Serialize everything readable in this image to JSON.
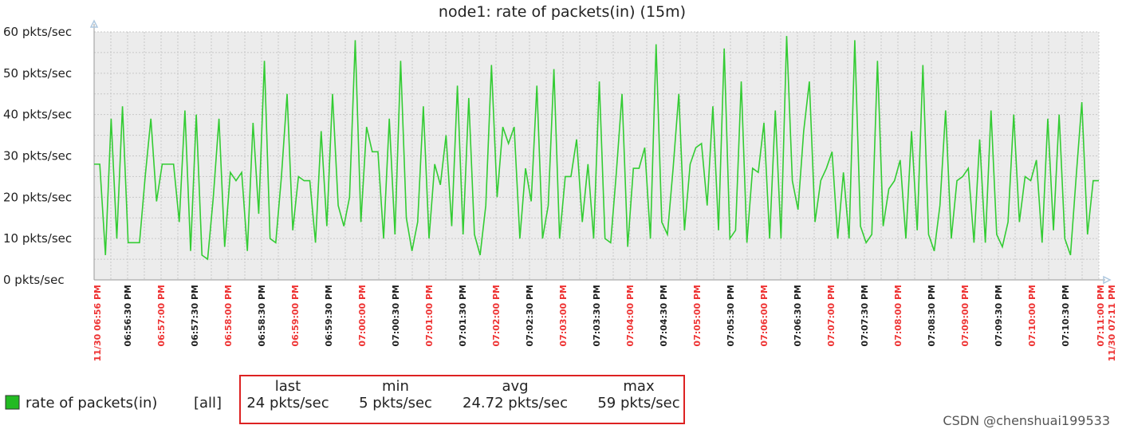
{
  "chart_data": {
    "type": "line",
    "title": "node1: rate of packets(in) (15m)",
    "ylabel": "",
    "xlabel": "",
    "y_unit": "pkts/sec",
    "ylim": [
      0,
      60
    ],
    "yticks": [
      0,
      10,
      20,
      30,
      40,
      50,
      60
    ],
    "ytick_labels": [
      "0 pkts/sec",
      "10 pkts/sec",
      "20 pkts/sec",
      "30 pkts/sec",
      "40 pkts/sec",
      "50 pkts/sec",
      "60 pkts/sec"
    ],
    "grid": true,
    "xlim": [
      "06:56:00 PM",
      "07:11:00 PM"
    ],
    "xticks": [
      {
        "label": "11/30 06:56 PM",
        "second": 0,
        "major": true
      },
      {
        "label": "06:56:30 PM",
        "second": 30,
        "major": false
      },
      {
        "label": "06:57:00 PM",
        "second": 60,
        "major": true
      },
      {
        "label": "06:57:30 PM",
        "second": 90,
        "major": false
      },
      {
        "label": "06:58:00 PM",
        "second": 120,
        "major": true
      },
      {
        "label": "06:58:30 PM",
        "second": 150,
        "major": false
      },
      {
        "label": "06:59:00 PM",
        "second": 180,
        "major": true
      },
      {
        "label": "06:59:30 PM",
        "second": 210,
        "major": false
      },
      {
        "label": "07:00:00 PM",
        "second": 240,
        "major": true
      },
      {
        "label": "07:00:30 PM",
        "second": 270,
        "major": false
      },
      {
        "label": "07:01:00 PM",
        "second": 300,
        "major": true
      },
      {
        "label": "07:01:30 PM",
        "second": 330,
        "major": false
      },
      {
        "label": "07:02:00 PM",
        "second": 360,
        "major": true
      },
      {
        "label": "07:02:30 PM",
        "second": 390,
        "major": false
      },
      {
        "label": "07:03:00 PM",
        "second": 420,
        "major": true
      },
      {
        "label": "07:03:30 PM",
        "second": 450,
        "major": false
      },
      {
        "label": "07:04:00 PM",
        "second": 480,
        "major": true
      },
      {
        "label": "07:04:30 PM",
        "second": 510,
        "major": false
      },
      {
        "label": "07:05:00 PM",
        "second": 540,
        "major": true
      },
      {
        "label": "07:05:30 PM",
        "second": 570,
        "major": false
      },
      {
        "label": "07:06:00 PM",
        "second": 600,
        "major": true
      },
      {
        "label": "07:06:30 PM",
        "second": 630,
        "major": false
      },
      {
        "label": "07:07:00 PM",
        "second": 660,
        "major": true
      },
      {
        "label": "07:07:30 PM",
        "second": 690,
        "major": false
      },
      {
        "label": "07:08:00 PM",
        "second": 720,
        "major": true
      },
      {
        "label": "07:08:30 PM",
        "second": 750,
        "major": false
      },
      {
        "label": "07:09:00 PM",
        "second": 780,
        "major": true
      },
      {
        "label": "07:09:30 PM",
        "second": 810,
        "major": false
      },
      {
        "label": "07:10:00 PM",
        "second": 840,
        "major": true
      },
      {
        "label": "07:10:30 PM",
        "second": 870,
        "major": false
      },
      {
        "label": "07:11:00 PM",
        "second": 900,
        "major": true
      },
      {
        "label": "11/30 07:11 PM",
        "second": 900,
        "major": true
      }
    ],
    "series": [
      {
        "name": "rate of packets(in)",
        "color": "#33cc33",
        "values": [
          28,
          28,
          6,
          39,
          10,
          42,
          9,
          9,
          9,
          25,
          39,
          19,
          28,
          28,
          28,
          14,
          41,
          7,
          40,
          6,
          5,
          20,
          39,
          8,
          26,
          24,
          26,
          7,
          38,
          16,
          53,
          10,
          9,
          25,
          45,
          12,
          25,
          24,
          24,
          9,
          36,
          13,
          45,
          18,
          13,
          20,
          58,
          14,
          37,
          31,
          31,
          10,
          39,
          11,
          53,
          15,
          7,
          14,
          42,
          10,
          28,
          23,
          35,
          13,
          47,
          11,
          44,
          11,
          6,
          18,
          52,
          20,
          37,
          33,
          37,
          10,
          27,
          19,
          47,
          10,
          18,
          51,
          10,
          25,
          25,
          34,
          14,
          28,
          10,
          48,
          10,
          9,
          26,
          45,
          8,
          27,
          27,
          32,
          10,
          57,
          14,
          11,
          27,
          45,
          12,
          28,
          32,
          33,
          18,
          42,
          12,
          56,
          10,
          12,
          48,
          9,
          27,
          26,
          38,
          10,
          41,
          10,
          59,
          24,
          17,
          36,
          48,
          14,
          24,
          27,
          31,
          10,
          26,
          10,
          58,
          13,
          9,
          11,
          53,
          13,
          22,
          24,
          29,
          10,
          36,
          12,
          52,
          11,
          7,
          18,
          41,
          10,
          24,
          25,
          27,
          9,
          34,
          9,
          41,
          11,
          8,
          14,
          40,
          14,
          25,
          24,
          29,
          9,
          39,
          12,
          40,
          10,
          6,
          25,
          43,
          11,
          24,
          24
        ]
      }
    ],
    "legend": {
      "placement": "bottom-left",
      "color": "#22bb22",
      "label": "rate of packets(in)",
      "scope": "[all]"
    },
    "stats": {
      "headers": [
        "last",
        "min",
        "avg",
        "max"
      ],
      "values": [
        "24 pkts/sec",
        "5 pkts/sec",
        "24.72 pkts/sec",
        "59 pkts/sec"
      ],
      "box_color": "#dd2222"
    },
    "watermark": "CSDN @chenshuai199533",
    "colors": {
      "plot_background": "#ececec",
      "grid": "#c8c8c8",
      "axis": "#999999",
      "major_tick_label": "#ee3333",
      "minor_tick_label": "#222222",
      "arrow": "#aec8e0"
    }
  }
}
